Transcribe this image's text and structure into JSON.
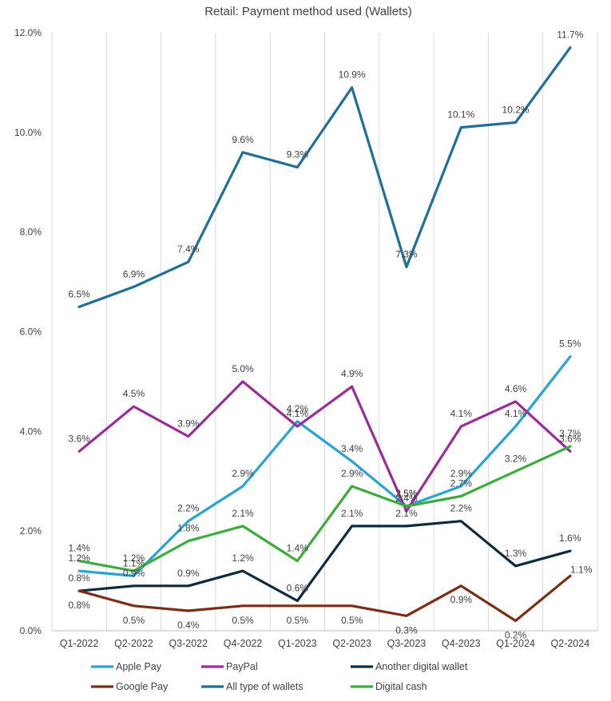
{
  "chart_data": {
    "type": "line",
    "title": "Retail: Payment method used (Wallets)",
    "categories": [
      "Q1-2022",
      "Q2-2022",
      "Q3-2022",
      "Q4-2022",
      "Q1-2023",
      "Q2-2023",
      "Q3-2023",
      "Q4-2023",
      "Q1-2024",
      "Q2-2024"
    ],
    "ylim": [
      0,
      12
    ],
    "yticks": [
      "0.0%",
      "2.0%",
      "4.0%",
      "6.0%",
      "8.0%",
      "10.0%",
      "12.0%"
    ],
    "grid": "vertical",
    "legend_position": "bottom",
    "series": [
      {
        "name": "Apple Pay",
        "color": "#29a3d6",
        "values": [
          1.2,
          1.1,
          2.2,
          2.9,
          4.2,
          3.4,
          2.5,
          2.9,
          4.1,
          5.5
        ],
        "labels": [
          "1.2%",
          "1.1%",
          "2.2%",
          "2.9%",
          "4.2%",
          "3.4%",
          "2.5%",
          "2.9%",
          "4.1%",
          "5.5%"
        ]
      },
      {
        "name": "PayPal",
        "color": "#9b2d9b",
        "values": [
          3.6,
          4.5,
          3.9,
          5.0,
          4.1,
          4.9,
          2.4,
          4.1,
          4.6,
          3.6
        ],
        "labels": [
          "3.6%",
          "4.5%",
          "3.9%",
          "5.0%",
          "4.1%",
          "4.9%",
          "2.4%",
          "4.1%",
          "4.6%",
          "3.6%"
        ]
      },
      {
        "name": "Another digital wallet",
        "color": "#0d2a40",
        "values": [
          0.8,
          0.9,
          0.9,
          1.2,
          0.6,
          2.1,
          2.1,
          2.2,
          1.3,
          1.6
        ],
        "labels": [
          "0.8%",
          "0.9%",
          "0.9%",
          "1.2%",
          "0.6%",
          "2.1%",
          "2.1%",
          "2.2%",
          "1.3%",
          "1.6%"
        ]
      },
      {
        "name": "Google Pay",
        "color": "#7b2e14",
        "values": [
          0.8,
          0.5,
          0.4,
          0.5,
          0.5,
          0.5,
          0.3,
          0.9,
          0.2,
          1.1
        ],
        "labels": [
          "0.8%",
          "0.5%",
          "0.4%",
          "0.5%",
          "0.5%",
          "0.5%",
          "0.3%",
          "0.9%",
          "0.2%",
          "1.1%"
        ]
      },
      {
        "name": "All type of wallets",
        "color": "#1f6f99",
        "values": [
          6.5,
          6.9,
          7.4,
          9.6,
          9.3,
          10.9,
          7.3,
          10.1,
          10.2,
          11.7
        ],
        "labels": [
          "6.5%",
          "6.9%",
          "7.4%",
          "9.6%",
          "9.3%",
          "10.9%",
          "7.3%",
          "10.1%",
          "10.2%",
          "11.7%"
        ]
      },
      {
        "name": "Digital cash",
        "color": "#3cad3c",
        "values": [
          1.4,
          1.2,
          1.8,
          2.1,
          1.4,
          2.9,
          2.5,
          2.7,
          3.2,
          3.7
        ],
        "labels": [
          "1.4%",
          "1.2%",
          "1.8%",
          "2.1%",
          "1.4%",
          "2.9%",
          "2.5%",
          "2.7%",
          "3.2%",
          "3.7%"
        ]
      }
    ]
  }
}
